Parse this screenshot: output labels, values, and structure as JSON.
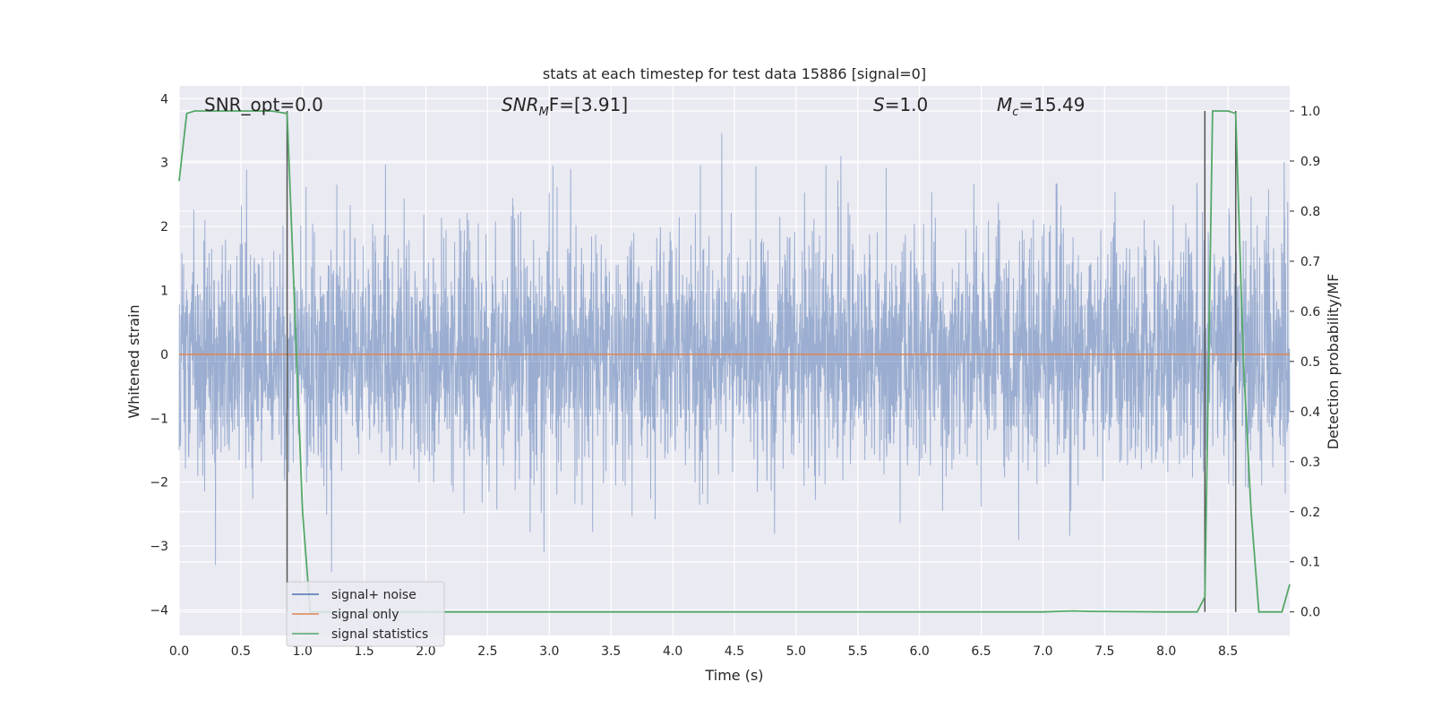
{
  "chart_data": {
    "type": "line",
    "title": "stats at each timestep for test data 15886 [signal=0]",
    "xlabel": "Time (s)",
    "ylabel": "Whitened strain",
    "y2label": "Detection probability/MF",
    "xlim": [
      0,
      9.0
    ],
    "ylim": [
      -4.4,
      4.2
    ],
    "y2lim": [
      -0.047,
      1.05
    ],
    "grid": true,
    "legend_position": "lower-left",
    "x_ticks": [
      "0.0",
      "0.5",
      "1.0",
      "1.5",
      "2.0",
      "2.5",
      "3.0",
      "3.5",
      "4.0",
      "4.5",
      "5.0",
      "5.5",
      "6.0",
      "6.5",
      "7.0",
      "7.5",
      "8.0",
      "8.5"
    ],
    "y_ticks": [
      "4",
      "3",
      "2",
      "1",
      "0",
      "−1",
      "−2",
      "−3",
      "−4"
    ],
    "y2_ticks": [
      "1.0",
      "0.9",
      "0.8",
      "0.7",
      "0.6",
      "0.5",
      "0.4",
      "0.3",
      "0.2",
      "0.1",
      "0.0"
    ],
    "annotations": {
      "snr_opt": "SNR_opt=0.0",
      "snr_mf_prefix": "SNR",
      "snr_mf_sub": "M",
      "snr_mf_suffix": "F=[3.91]",
      "s_label": "S",
      "s_value": "=1.0",
      "mc_label": "M",
      "mc_sub": "c",
      "mc_value": "=15.49"
    },
    "series": [
      {
        "name": "signal+ noise",
        "color": "#4c72b0",
        "kind": "noise",
        "sample_rate_hz": 2048,
        "approx_band": [
          -2.0,
          2.0
        ],
        "approx_extremes": [
          -3.5,
          3.5
        ]
      },
      {
        "name": "signal only",
        "color": "#dd8452",
        "x": [
          0,
          9.0
        ],
        "y": [
          0,
          0
        ]
      },
      {
        "name": "signal statistics",
        "color": "#55a868",
        "axis": "right",
        "x": [
          0.0,
          0.062,
          0.125,
          0.188,
          0.25,
          0.375,
          0.5,
          0.625,
          0.75,
          0.875,
          0.9375,
          1.0,
          1.0625,
          1.125,
          2.0,
          3.0,
          4.0,
          5.0,
          6.0,
          7.0,
          7.125,
          7.25,
          7.375,
          8.0,
          8.25,
          8.3125,
          8.375,
          8.4375,
          8.5,
          8.5625,
          8.625,
          8.6875,
          8.75,
          8.8125,
          8.875,
          8.9375,
          9.0
        ],
        "y": [
          0.86,
          0.995,
          1.0,
          1.0,
          1.0,
          1.0,
          1.0,
          1.0,
          1.0,
          0.995,
          0.6,
          0.2,
          0.0,
          0.0,
          0.0,
          0.0,
          0.0,
          0.0,
          0.0,
          0.0,
          0.001,
          0.002,
          0.001,
          0.0,
          0.0,
          0.03,
          1.0,
          1.0,
          1.0,
          0.995,
          0.5,
          0.2,
          0.0,
          0.0,
          0.0,
          0.0,
          0.055
        ]
      }
    ],
    "markers": {
      "color": "#555555",
      "x": [
        0.875,
        8.3125,
        8.5625
      ],
      "y2_top": [
        1.0,
        1.0,
        1.0
      ],
      "y2_bottom": [
        0.0,
        0.0,
        0.0
      ]
    }
  }
}
